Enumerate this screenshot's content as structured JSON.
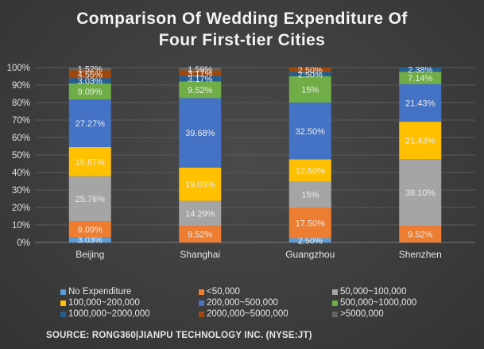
{
  "chart_data": {
    "type": "stacked-bar-100",
    "title": "Comparison Of Wedding Expenditure Of Four First-tier Cities",
    "title_lines": [
      "Comparison Of Wedding Expenditure Of",
      "Four First-tier Cities"
    ],
    "categories": [
      "Beijing",
      "Shanghai",
      "Guangzhou",
      "Shenzhen"
    ],
    "y_ticks": [
      "0%",
      "10%",
      "20%",
      "30%",
      "40%",
      "50%",
      "60%",
      "70%",
      "80%",
      "90%",
      "100%"
    ],
    "ylim": [
      0,
      100
    ],
    "series": [
      {
        "name": "No Expenditure",
        "color": "#5B9BD5",
        "values": [
          3.03,
          0,
          2.5,
          0
        ],
        "labels": [
          "3.03%",
          "",
          "2.50%",
          ""
        ]
      },
      {
        "name": "<50,000",
        "color": "#ED7D31",
        "values": [
          9.09,
          9.52,
          17.5,
          9.52
        ],
        "labels": [
          "9.09%",
          "9.52%",
          "17.50%",
          "9.52%"
        ]
      },
      {
        "name": "50,000~100,000",
        "color": "#A5A5A5",
        "values": [
          25.76,
          14.29,
          15,
          38.1
        ],
        "labels": [
          "25.76%",
          "14.29%",
          "15%",
          "38.10%"
        ]
      },
      {
        "name": "100,000~200,000",
        "color": "#FFC000",
        "values": [
          16.67,
          19.05,
          12.5,
          21.43
        ],
        "labels": [
          "16.67%",
          "19.05%",
          "12.50%",
          "21.43%"
        ]
      },
      {
        "name": "200,000~500,000",
        "color": "#4472C4",
        "values": [
          27.27,
          39.68,
          32.5,
          21.43
        ],
        "labels": [
          "27.27%",
          "39.68%",
          "32.50%",
          "21.43%"
        ]
      },
      {
        "name": "500,000~1000,000",
        "color": "#70AD47",
        "values": [
          9.09,
          9.52,
          15,
          7.14
        ],
        "labels": [
          "9.09%",
          "9.52%",
          "15%",
          "7.14%"
        ]
      },
      {
        "name": "1000,000~2000,000",
        "color": "#255E91",
        "values": [
          3.03,
          3.17,
          2.5,
          2.38
        ],
        "labels": [
          "3.03%",
          "3.17%",
          "2.50%",
          "2.38%"
        ]
      },
      {
        "name": "2000,000~5000,000",
        "color": "#9E480E",
        "values": [
          4.55,
          3.17,
          2.5,
          0
        ],
        "labels": [
          "4.55%",
          "3.17%",
          "2.50%",
          ""
        ]
      },
      {
        "name": ">5000,000",
        "color": "#636363",
        "values": [
          1.52,
          1.59,
          0,
          0
        ],
        "labels": [
          "1.52%",
          "1.59%",
          "",
          ""
        ]
      }
    ],
    "legend_position": "bottom",
    "grid": true,
    "source": "SOURCE: RONG360|JIANPU TECHNOLOGY INC. (NYSE:JT)"
  }
}
